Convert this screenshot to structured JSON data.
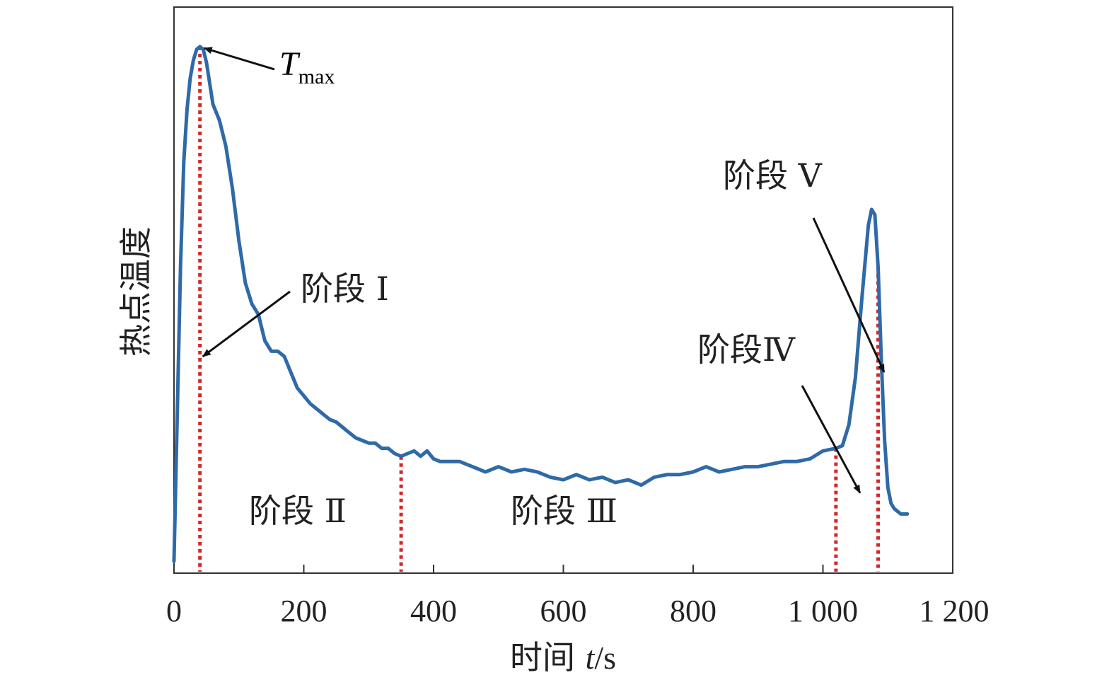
{
  "chart_data": {
    "type": "line",
    "title": "",
    "xlabel": "时间 ",
    "xlabel_var": "t",
    "xlabel_unit": "/s",
    "ylabel": "热点温度",
    "xlim": [
      0,
      1200
    ],
    "ylim": [
      0,
      100
    ],
    "x_ticks": [
      0,
      200,
      400,
      600,
      800,
      1000,
      1200
    ],
    "x_tick_labels": [
      "0",
      "200",
      "400",
      "600",
      "800",
      "1 000",
      "1 200"
    ],
    "grid": false,
    "line_color": "#2f6aa8",
    "stage_line_color": "#d62728",
    "series": [
      {
        "name": "热点温度",
        "x": [
          0,
          5,
          10,
          15,
          20,
          25,
          30,
          35,
          40,
          45,
          50,
          55,
          60,
          70,
          80,
          90,
          100,
          110,
          120,
          130,
          140,
          150,
          160,
          170,
          180,
          190,
          200,
          210,
          220,
          230,
          240,
          250,
          260,
          270,
          280,
          290,
          300,
          310,
          320,
          330,
          340,
          350,
          360,
          370,
          380,
          390,
          400,
          410,
          420,
          440,
          460,
          480,
          500,
          520,
          540,
          560,
          580,
          600,
          620,
          640,
          660,
          680,
          700,
          720,
          740,
          760,
          780,
          800,
          820,
          840,
          860,
          880,
          900,
          920,
          940,
          960,
          980,
          1000,
          1020,
          1030,
          1040,
          1050,
          1060,
          1070,
          1075,
          1080,
          1085,
          1090,
          1095,
          1100,
          1105,
          1110,
          1120,
          1130
        ],
        "y": [
          2,
          30,
          58,
          78,
          88,
          94,
          97.5,
          99.5,
          100,
          99.5,
          97,
          93,
          89,
          86,
          81,
          73,
          63,
          55,
          51,
          49,
          44,
          42,
          42,
          41,
          38,
          35,
          33.5,
          32,
          31,
          30,
          29,
          28.5,
          27.5,
          26.5,
          25.5,
          25,
          24.5,
          24.5,
          23.5,
          23.5,
          22.5,
          22,
          22.5,
          23,
          22,
          23,
          21.5,
          21,
          21,
          21,
          20,
          19,
          20,
          19,
          19.5,
          19,
          18,
          17.5,
          18.5,
          17.5,
          18,
          17,
          17.5,
          16.5,
          18,
          18.5,
          18.5,
          19,
          20,
          19,
          19.5,
          20,
          20,
          20.5,
          21,
          21,
          21.5,
          23,
          23.5,
          24,
          28,
          37,
          52,
          66,
          69,
          68,
          58,
          40,
          25,
          16,
          13,
          12,
          11,
          11
        ]
      }
    ],
    "stage_boundaries": [
      40,
      350,
      1020,
      1085
    ],
    "annotations": {
      "tmax": {
        "main": "T",
        "sub": "max",
        "x": 40,
        "y": 100
      },
      "stage1": {
        "label": "阶段 Ⅰ",
        "x": 40,
        "y": 41
      },
      "stage2": {
        "label": "阶段 Ⅱ"
      },
      "stage3": {
        "label": "阶段 Ⅲ"
      },
      "stage4": {
        "label": "阶段Ⅳ",
        "x": 1055,
        "y": 15
      },
      "stage5": {
        "label": "阶段 Ⅴ",
        "x": 1090,
        "y": 38
      }
    }
  }
}
